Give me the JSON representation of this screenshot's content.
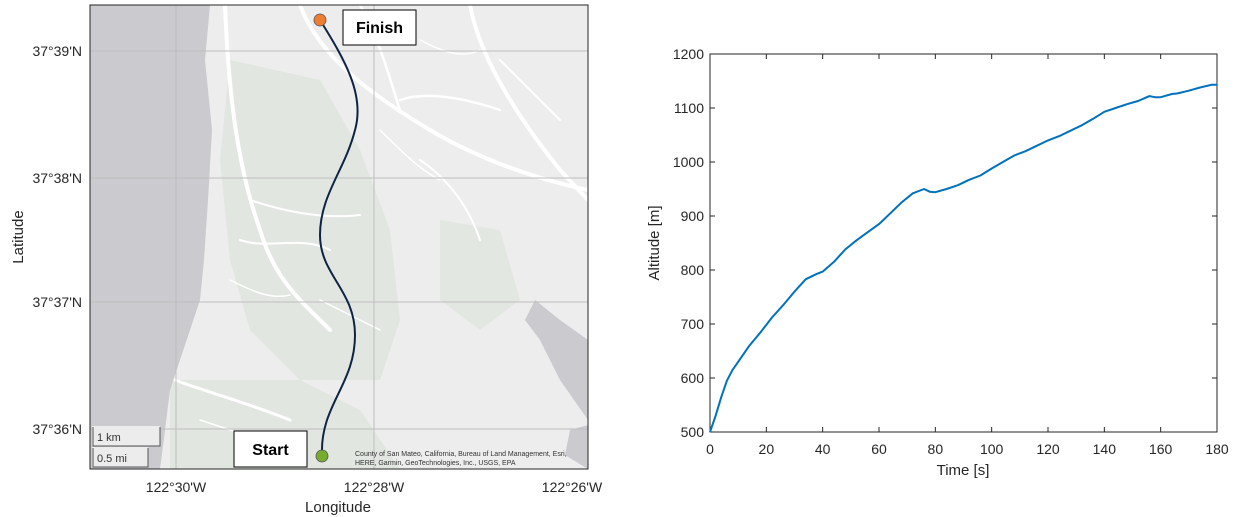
{
  "map_panel": {
    "xlabel": "Longitude",
    "ylabel": "Latitude",
    "lon_ticks": [
      "122°30'W",
      "122°28'W",
      "122°26'W"
    ],
    "lat_ticks": [
      "37°39'N",
      "37°38'N",
      "37°37'N",
      "37°36'N"
    ],
    "start_label": "Start",
    "finish_label": "Finish",
    "scalebar": {
      "km_label": "1 km",
      "mi_label": "0.5 mi"
    },
    "attribution_line1": "County of San Mateo, California, Bureau of Land Management, Esri,",
    "attribution_line2": "HERE, Garmin, GeoTechnologies, Inc., USGS, EPA",
    "colors": {
      "route": "#0e2446",
      "start_marker": "#77ac30",
      "finish_marker": "#ed7d31",
      "ocean": "#cacacf",
      "land": "#ededed",
      "park": "#e1e6e0",
      "road": "#ffffff"
    }
  },
  "chart_data": {
    "type": "line",
    "xlabel": "Time [s]",
    "ylabel": "Altitude [m]",
    "xlim": [
      0,
      180
    ],
    "ylim": [
      500,
      1200
    ],
    "xticks": [
      0,
      20,
      40,
      60,
      80,
      100,
      120,
      140,
      160,
      180
    ],
    "yticks": [
      500,
      600,
      700,
      800,
      900,
      1000,
      1100,
      1200
    ],
    "grid": false,
    "color": "#0072bd",
    "x": [
      0,
      2,
      4,
      6,
      8,
      10,
      14,
      18,
      22,
      26,
      30,
      34,
      38,
      40,
      44,
      48,
      52,
      56,
      60,
      64,
      68,
      72,
      76,
      78,
      80,
      84,
      88,
      92,
      96,
      100,
      104,
      108,
      112,
      116,
      120,
      124,
      128,
      132,
      136,
      140,
      144,
      148,
      152,
      156,
      158,
      160,
      164,
      166,
      170,
      174,
      178,
      180
    ],
    "y": [
      500,
      530,
      565,
      595,
      615,
      630,
      660,
      685,
      712,
      735,
      760,
      783,
      793,
      797,
      815,
      838,
      855,
      870,
      885,
      905,
      925,
      942,
      950,
      945,
      944,
      950,
      957,
      967,
      975,
      988,
      1000,
      1012,
      1020,
      1030,
      1040,
      1048,
      1058,
      1068,
      1080,
      1093,
      1100,
      1107,
      1113,
      1122,
      1120,
      1120,
      1126,
      1127,
      1132,
      1138,
      1143,
      1143
    ]
  }
}
